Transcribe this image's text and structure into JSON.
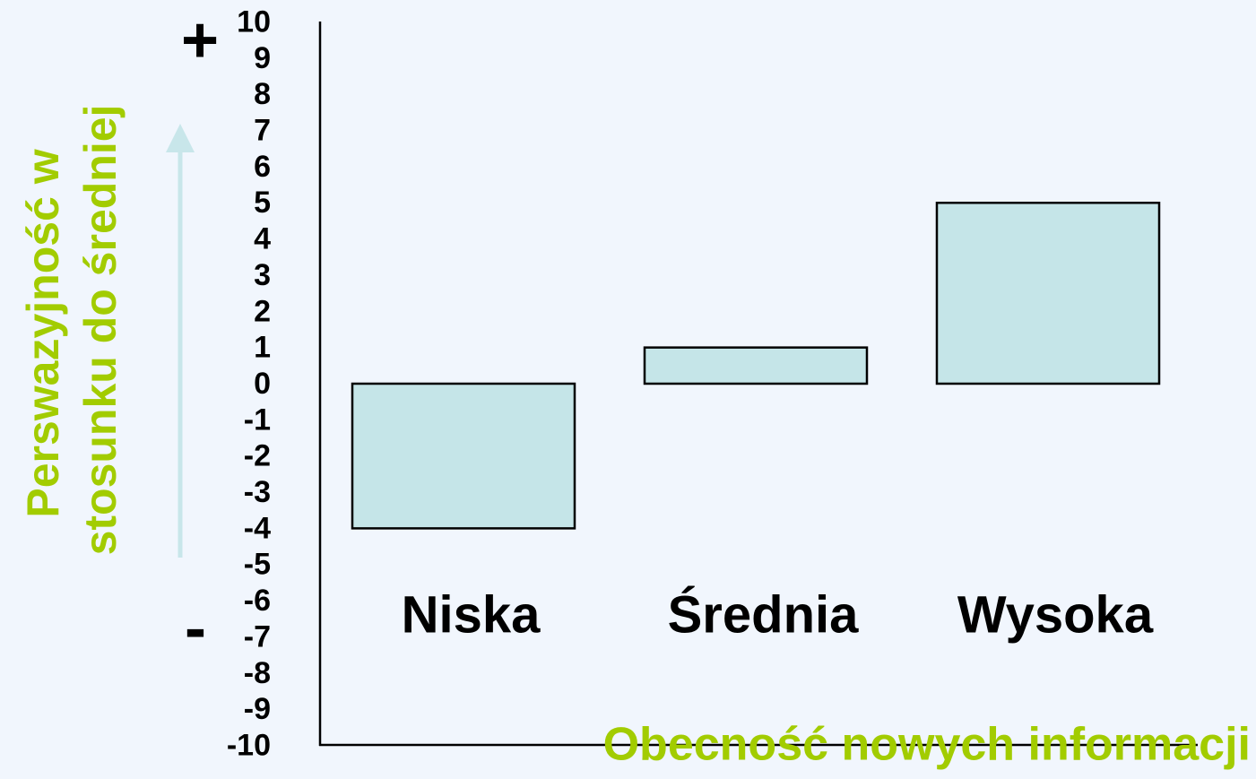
{
  "chart_data": {
    "type": "bar",
    "ylabel": [
      "Perswazyjność w",
      "stosunku do średniej"
    ],
    "xlabel": "Obecność nowych informacji",
    "annotations": [
      "+",
      "-"
    ],
    "categories": [
      "Niska",
      "Średnia",
      "Wysoka"
    ],
    "values": [
      -4,
      1,
      5
    ],
    "color": "#c5e5e8",
    "ylim": [
      -10,
      10
    ],
    "yticks": [
      -10,
      -9,
      -8,
      -7,
      -6,
      -5,
      -4,
      -3,
      -2,
      -1,
      0,
      1,
      2,
      3,
      4,
      5,
      6,
      7,
      8,
      9,
      10
    ],
    "grid": false
  }
}
